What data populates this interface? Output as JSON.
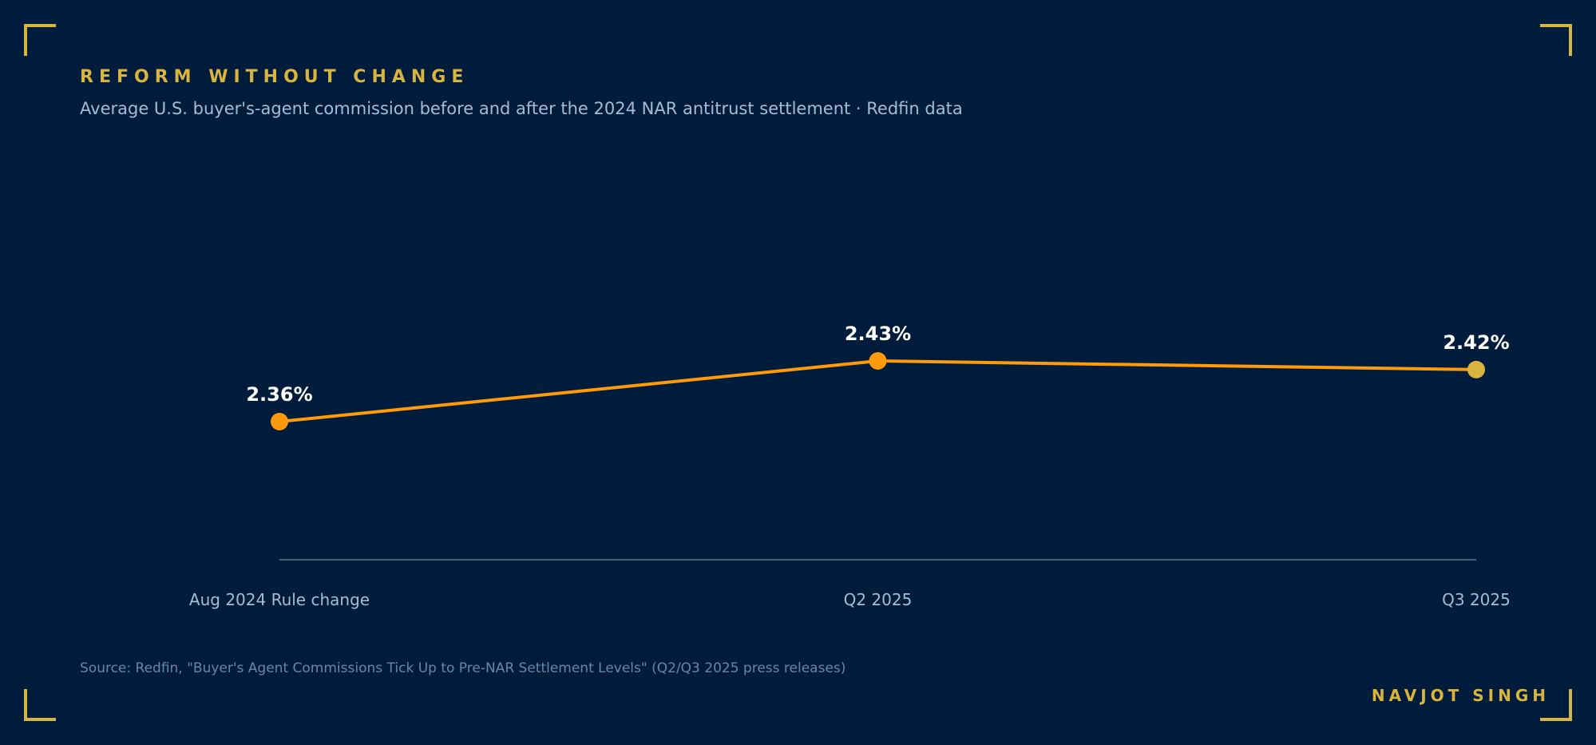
{
  "header": {
    "kicker": "REFORM WITHOUT CHANGE",
    "subtitle": "Average U.S. buyer's-agent commission before and after the 2024 NAR antitrust settlement · Redfin data"
  },
  "footer": {
    "source": "Source: Redfin, \"Buyer's Agent Commissions Tick Up to Pre-NAR Settlement Levels\" (Q2/Q3 2025 press releases)",
    "author": "NAVJOT SINGH"
  },
  "colors": {
    "background": "#001c3d",
    "accent_gold": "#d9b43e",
    "line": "#ff9a0a",
    "last_point": "#d9b43e",
    "baseline": "#4a5e78",
    "label_text": "#ffffff",
    "tick_text": "#a9bbd3"
  },
  "chart_data": {
    "type": "line",
    "categories": [
      "Aug 2024 Rule change",
      "Q2 2025",
      "Q3 2025"
    ],
    "series": [
      {
        "values": [
          2.36,
          2.43,
          2.42
        ],
        "data_labels": [
          "2.36%",
          "2.43%",
          "2.42%"
        ]
      }
    ],
    "grid": false,
    "legend": "none"
  }
}
